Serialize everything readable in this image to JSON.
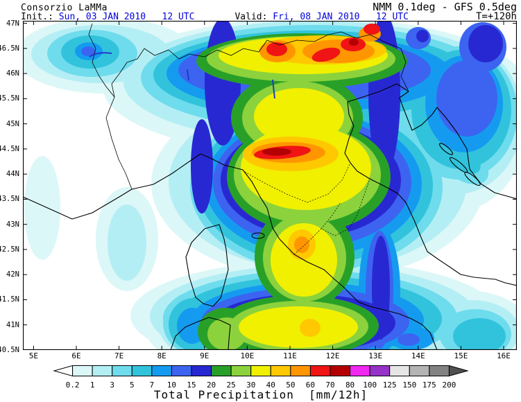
{
  "header": {
    "site": "Consorzio LaMMa",
    "model": "NMM 0.1deg - GFS 0.5deg",
    "init_label": "Init.: ",
    "init_value": "Sun, 03 JAN 2010   12 UTC",
    "valid_label": "Valid: ",
    "valid_value": "Fri, 08 JAN 2010   12 UTC",
    "lead": "T=+120h"
  },
  "colors": {
    "date_text": "#0000dc",
    "frame": "#000000",
    "land_outline": "#000000",
    "lake": "#1e3cc8"
  },
  "map": {
    "lat_labels": [
      "47N",
      "46.5N",
      "46N",
      "45.5N",
      "45N",
      "44.5N",
      "44N",
      "43.5N",
      "43N",
      "42.5N",
      "42N",
      "41.5N",
      "41N",
      "40.5N"
    ],
    "lon_labels": [
      "5E",
      "6E",
      "7E",
      "8E",
      "9E",
      "10E",
      "11E",
      "12E",
      "13E",
      "14E",
      "15E",
      "16E"
    ]
  },
  "legend": {
    "title": "Total Precipitation  [mm/12h]",
    "values": [
      "0.2",
      "1",
      "3",
      "5",
      "7",
      "10",
      "15",
      "20",
      "25",
      "30",
      "40",
      "50",
      "60",
      "70",
      "80",
      "100",
      "125",
      "150",
      "175",
      "200"
    ],
    "colors": [
      "#ffffff",
      "#dcf7f7",
      "#b4eef5",
      "#6edcec",
      "#32c3dc",
      "#149bf0",
      "#3c64f0",
      "#2828d2",
      "#28a028",
      "#8cd23c",
      "#f0f000",
      "#ffc800",
      "#ff9600",
      "#f01414",
      "#b40000",
      "#f028f0",
      "#9632c8",
      "#e6e6e6",
      "#b4b4b4",
      "#828282",
      "#505050"
    ]
  },
  "chart_data": {
    "type": "heatmap",
    "title": "Total Precipitation  [mm/12h]",
    "variable": "total precipitation",
    "units": "mm/12h",
    "model": "NMM 0.1deg - GFS 0.5deg",
    "init": "Sun, 03 JAN 2010 12 UTC",
    "valid": "Fri, 08 JAN 2010 12 UTC",
    "lead_hours": 120,
    "lon_range_deg_e": [
      5,
      16
    ],
    "lat_range_deg_n": [
      40.5,
      47
    ],
    "scale_levels_mm": [
      0.2,
      1,
      3,
      5,
      7,
      10,
      15,
      20,
      25,
      30,
      40,
      50,
      60,
      70,
      80,
      100,
      125,
      150,
      175,
      200
    ],
    "legend_position": "bottom",
    "features": [
      {
        "region": "Eastern Alps (10.5-13E, 46-47N)",
        "value_band_mm": "50-80 with red cores 60-80"
      },
      {
        "region": "Northern Apennines (10.2-11.2E, 44.3-44.6N)",
        "value_band_mm": "70-80 (dark red core)"
      },
      {
        "region": "Central Italy band (10.5-12E, 41-44N)",
        "value_band_mm": "30-50, local 50-60 near 11.3E 42.6N"
      },
      {
        "region": "Vertical strip 13-13.3E, 41-44N",
        "value_band_mm": "15-20"
      },
      {
        "region": "NE corner 15.5-16E, 46-47N",
        "value_band_mm": "15-20"
      },
      {
        "region": "Western France edge / lower-left sea",
        "value_band_mm": "< 0.2"
      },
      {
        "region": "Central Adriatic 14-16E, 42.5-43.5N",
        "value_band_mm": "< 0.2"
      }
    ]
  }
}
